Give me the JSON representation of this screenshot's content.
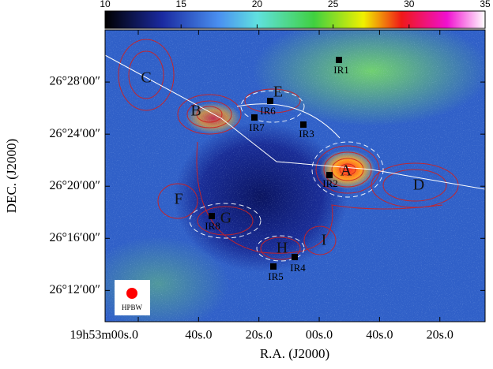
{
  "chart_data": {
    "type": "map",
    "xlabel": "R.A. (J2000)",
    "ylabel": "DEC. (J2000)",
    "xlim": [
      11,
      -115
    ],
    "xticks": [
      {
        "value": 0,
        "label": "19h53m00s.0"
      },
      {
        "value": -20,
        "label": "40s.0"
      },
      {
        "value": -40,
        "label": "20s.0"
      },
      {
        "value": -60,
        "label": "00s.0"
      },
      {
        "value": -80,
        "label": "40s.0"
      },
      {
        "value": -100,
        "label": "20s.0"
      }
    ],
    "ylim": [
      9.6,
      32
    ],
    "yticks": [
      {
        "value": 28,
        "label": "26°28′00″"
      },
      {
        "value": 24,
        "label": "26°24′00″"
      },
      {
        "value": 20,
        "label": "26°20′00″"
      },
      {
        "value": 16,
        "label": "26°16′00″"
      },
      {
        "value": 12,
        "label": "26°12′00″"
      }
    ],
    "colorbar": {
      "lim": [
        10,
        35
      ],
      "ticks": [
        10,
        15,
        20,
        25,
        30,
        35
      ]
    },
    "regions": [
      "A",
      "B",
      "C",
      "D",
      "E",
      "F",
      "G",
      "H",
      "I"
    ],
    "sources": [
      "IR1",
      "IR2",
      "IR3",
      "IR4",
      "IR5",
      "IR6",
      "IR7",
      "IR8"
    ],
    "beam_label": "HPBW"
  }
}
